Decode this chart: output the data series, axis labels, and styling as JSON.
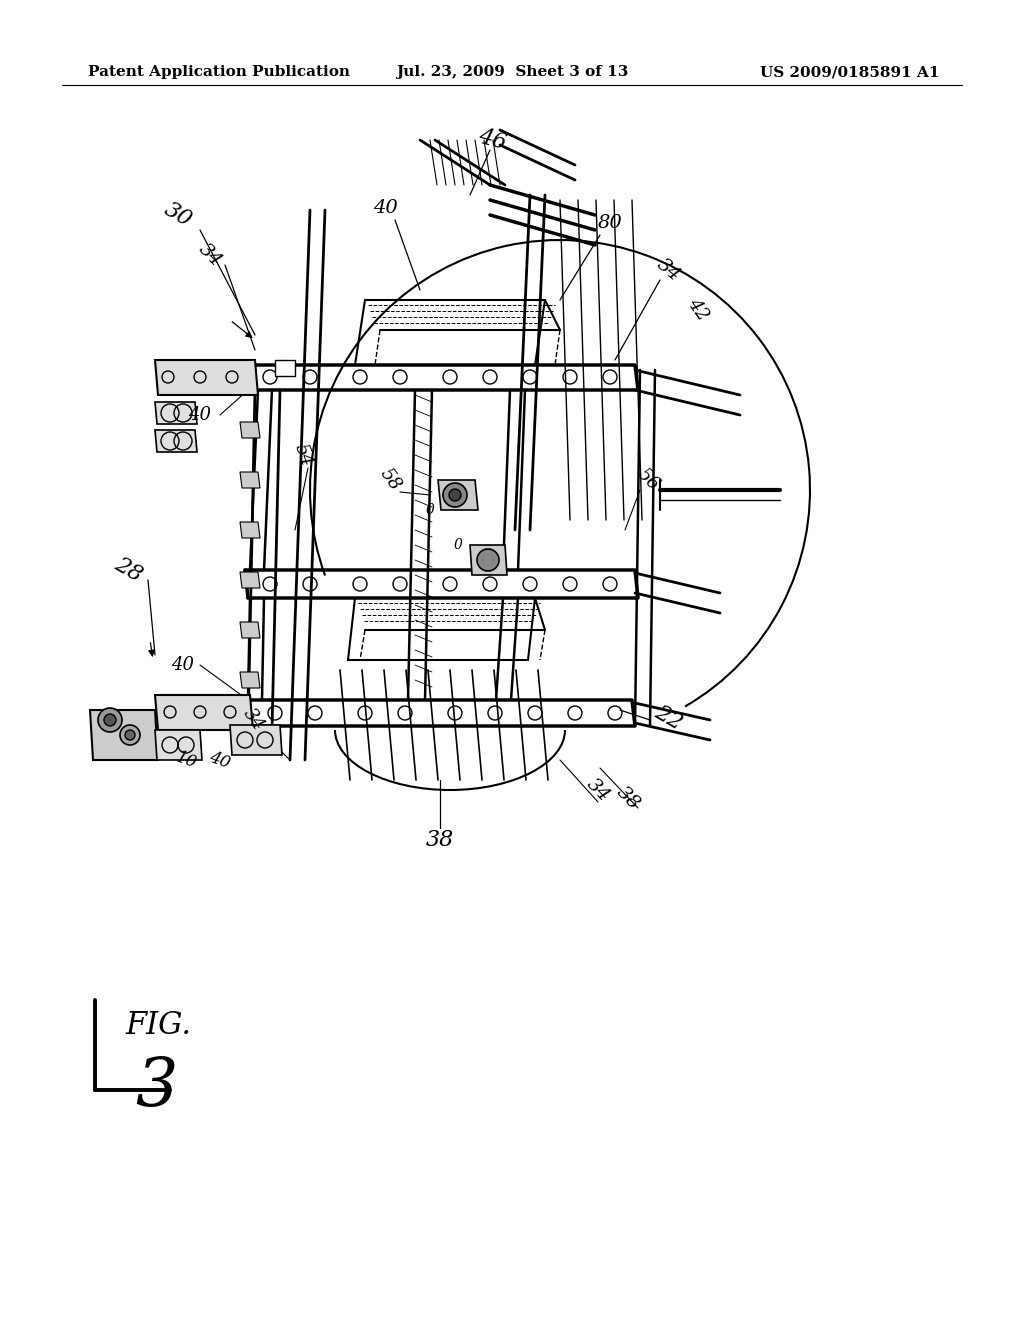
{
  "background_color": "#ffffff",
  "header_left": "Patent Application Publication",
  "header_center": "Jul. 23, 2009  Sheet 3 of 13",
  "header_right": "US 2009/0185891 A1",
  "fig_width": 10.24,
  "fig_height": 13.2,
  "dpi": 100
}
